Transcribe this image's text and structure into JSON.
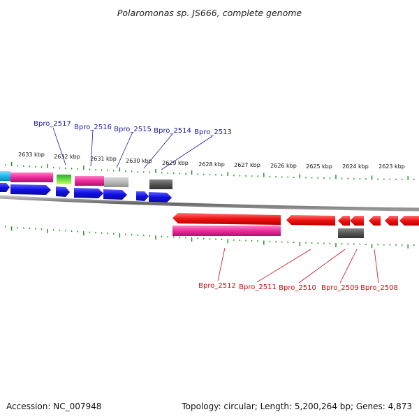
{
  "title": "Polaromonas sp. JS666, complete genome",
  "footer": {
    "accession": "Accession: NC_007948",
    "summary": "Topology: circular; Length: 5,200,264 bp; Genes: 4,873"
  },
  "scale_labels": [
    "2633 kbp",
    "2632 kbp",
    "2631 kbp",
    "2630 kbp",
    "2629 kbp",
    "2628 kbp",
    "2627 kbp",
    "2626 kbp",
    "2625 kbp",
    "2624 kbp",
    "2623 kbp"
  ],
  "forward_labels": [
    "Bpro_2517",
    "Bpro_2516",
    "Bpro_2515",
    "Bpro_2514",
    "Bpro_2513"
  ],
  "reverse_labels": [
    "Bpro_2512",
    "Bpro_2511",
    "Bpro_2510",
    "Bpro_2509",
    "Bpro_2508"
  ],
  "colors": {
    "forward_cds": "#1010e0",
    "reverse_cds": "#ee1111",
    "cog_magenta": "#ee2a9a",
    "cog_cyan": "#22bbee",
    "cog_green": "#33cc33",
    "cog_grey": "#b8b8b8",
    "cog_darkgrey": "#555555",
    "backbone": "#888888",
    "ticks": "#1a8a1a",
    "forward_label": "#1a1aa0",
    "reverse_label": "#c01010"
  }
}
